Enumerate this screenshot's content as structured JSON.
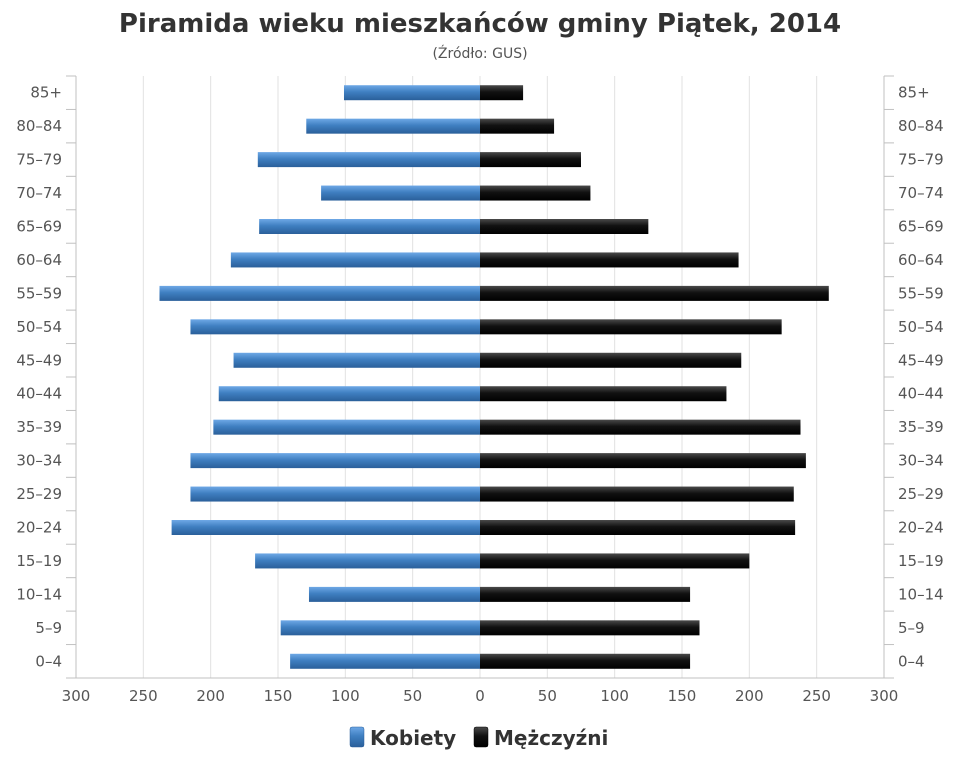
{
  "chart_data": {
    "type": "bar",
    "orientation": "horizontal",
    "layout": "population-pyramid",
    "title": "Piramida wieku mieszkańców gminy Piątek, 2014",
    "subtitle": "(Źródło: GUS)",
    "categories": [
      "85+",
      "80–84",
      "75–79",
      "70–74",
      "65–69",
      "60–64",
      "55–59",
      "50–54",
      "45–49",
      "40–44",
      "35–39",
      "30–34",
      "25–29",
      "20–24",
      "15–19",
      "10–14",
      "5–9",
      "0–4"
    ],
    "series": [
      {
        "name": "Kobiety",
        "color": "#3f7fc1",
        "side": "left",
        "values": [
          101,
          129,
          165,
          118,
          164,
          185,
          238,
          215,
          183,
          194,
          198,
          215,
          215,
          229,
          167,
          127,
          148,
          141
        ]
      },
      {
        "name": "Mężczyźni",
        "color": "#111111",
        "side": "right",
        "values": [
          32,
          55,
          75,
          82,
          125,
          192,
          259,
          224,
          194,
          183,
          238,
          242,
          233,
          234,
          200,
          156,
          163,
          156
        ]
      }
    ],
    "x_ticks": [
      "300",
      "250",
      "200",
      "150",
      "100",
      "50",
      "0",
      "50",
      "100",
      "150",
      "200",
      "250",
      "300"
    ],
    "xlim": [
      -300,
      300
    ],
    "grid": true,
    "legend_position": "bottom-center"
  }
}
